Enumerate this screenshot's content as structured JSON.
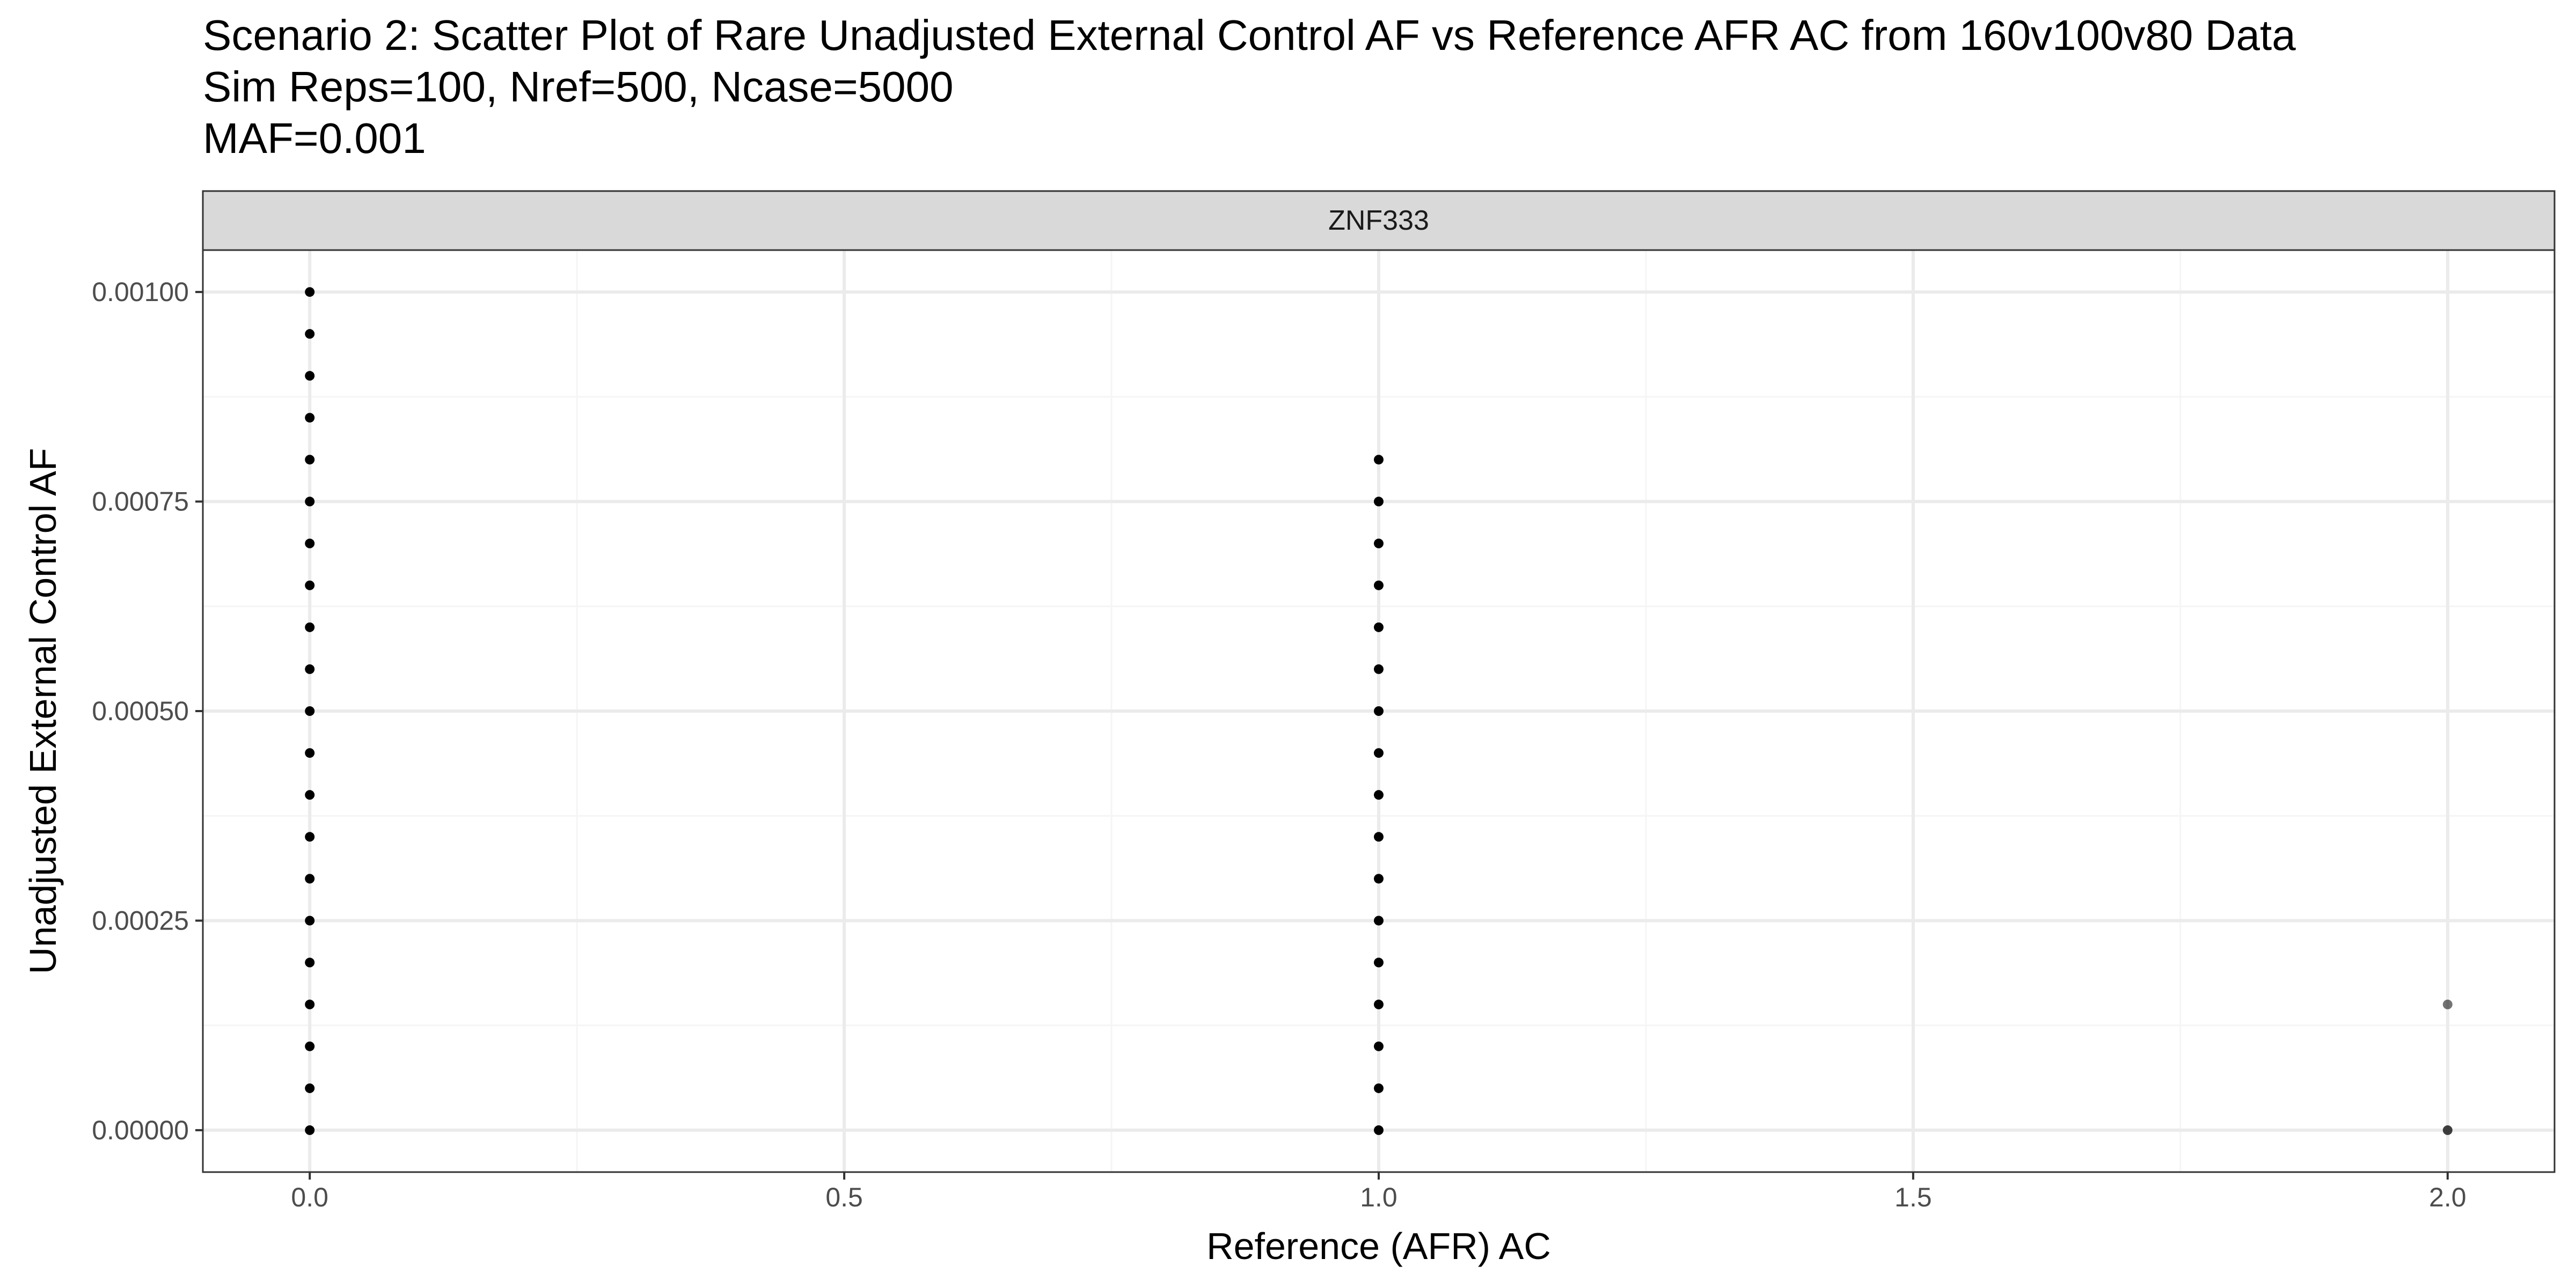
{
  "chart_data": {
    "type": "scatter",
    "title": "Scenario 2: Scatter Plot of Rare Unadjusted External Control AF vs Reference AFR AC from 160v100v80 Data",
    "subtitle_lines": [
      "Sim Reps=100, Nref=500, Ncase=5000",
      "MAF=0.001"
    ],
    "facet_label": "ZNF333",
    "xlabel": "Reference (AFR) AC",
    "ylabel": "Unadjusted External Control AF",
    "xlim": [
      -0.1,
      2.1
    ],
    "ylim": [
      -5e-05,
      0.00105
    ],
    "x_ticks": [
      0.0,
      0.5,
      1.0,
      1.5,
      2.0
    ],
    "x_tick_labels": [
      "0.0",
      "0.5",
      "1.0",
      "1.5",
      "2.0"
    ],
    "x_minor": [
      0.25,
      0.75,
      1.25,
      1.75
    ],
    "y_ticks": [
      0.0,
      0.00025,
      0.0005,
      0.00075,
      0.001
    ],
    "y_tick_labels": [
      "0.00000",
      "0.00025",
      "0.00050",
      "0.00075",
      "0.00100"
    ],
    "y_minor": [
      0.000125,
      0.000375,
      0.000625,
      0.000875
    ],
    "grid": true,
    "theme": "bw",
    "points": [
      {
        "x": 0,
        "y": 0.0
      },
      {
        "x": 0,
        "y": 5e-05
      },
      {
        "x": 0,
        "y": 0.0001
      },
      {
        "x": 0,
        "y": 0.00015
      },
      {
        "x": 0,
        "y": 0.0002
      },
      {
        "x": 0,
        "y": 0.00025
      },
      {
        "x": 0,
        "y": 0.0003
      },
      {
        "x": 0,
        "y": 0.00035
      },
      {
        "x": 0,
        "y": 0.0004
      },
      {
        "x": 0,
        "y": 0.00045
      },
      {
        "x": 0,
        "y": 0.0005
      },
      {
        "x": 0,
        "y": 0.00055
      },
      {
        "x": 0,
        "y": 0.0006
      },
      {
        "x": 0,
        "y": 0.00065
      },
      {
        "x": 0,
        "y": 0.0007
      },
      {
        "x": 0,
        "y": 0.00075
      },
      {
        "x": 0,
        "y": 0.0008
      },
      {
        "x": 0,
        "y": 0.00085
      },
      {
        "x": 0,
        "y": 0.0009
      },
      {
        "x": 0,
        "y": 0.00095
      },
      {
        "x": 0,
        "y": 0.001
      },
      {
        "x": 1,
        "y": 0.0
      },
      {
        "x": 1,
        "y": 5e-05
      },
      {
        "x": 1,
        "y": 0.0001
      },
      {
        "x": 1,
        "y": 0.00015
      },
      {
        "x": 1,
        "y": 0.0002
      },
      {
        "x": 1,
        "y": 0.00025
      },
      {
        "x": 1,
        "y": 0.0003
      },
      {
        "x": 1,
        "y": 0.00035
      },
      {
        "x": 1,
        "y": 0.0004
      },
      {
        "x": 1,
        "y": 0.00045
      },
      {
        "x": 1,
        "y": 0.0005
      },
      {
        "x": 1,
        "y": 0.00055
      },
      {
        "x": 1,
        "y": 0.0006
      },
      {
        "x": 1,
        "y": 0.00065
      },
      {
        "x": 1,
        "y": 0.0007
      },
      {
        "x": 1,
        "y": 0.00075
      },
      {
        "x": 1,
        "y": 0.0008
      },
      {
        "x": 2,
        "y": 0.0,
        "alpha": 0.75
      },
      {
        "x": 2,
        "y": 0.00015,
        "alpha": 0.55
      }
    ],
    "colors": {
      "point": "#000000",
      "panel_border": "#333333",
      "strip_fill": "#d9d9d9",
      "grid_major": "#ebebeb",
      "grid_minor": "#f5f5f5",
      "tick_text": "#4d4d4d"
    }
  }
}
